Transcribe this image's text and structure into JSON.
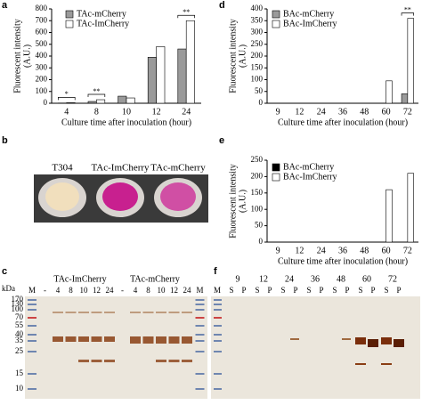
{
  "chart_data": [
    {
      "type": "bar",
      "letter": "a",
      "ylabel": "Fluorescent intensity",
      "ylabel_unit": "(A.U.)",
      "xlabel": "Culture time after inoculation (hour)",
      "categories": [
        "4",
        "8",
        "10",
        "12",
        "24"
      ],
      "series": [
        {
          "name": "TAc-mCherry",
          "color": "#9a9a9a",
          "values": [
            2,
            15,
            60,
            390,
            460
          ]
        },
        {
          "name": "TAc-ImCherry",
          "color": "#ffffff",
          "values": [
            5,
            30,
            45,
            480,
            700
          ]
        }
      ],
      "ylim": [
        0,
        800
      ],
      "yticks": [
        0,
        100,
        200,
        300,
        400,
        500,
        600,
        700,
        800
      ],
      "annotations": [
        "*",
        "**",
        "**"
      ]
    },
    {
      "type": "bar",
      "letter": "d",
      "ylabel": "Fluorescent intensity",
      "ylabel_unit": "(A.U.)",
      "xlabel": "Culture time after inoculation (hour)",
      "categories": [
        "9",
        "12",
        "24",
        "36",
        "48",
        "60",
        "72"
      ],
      "series": [
        {
          "name": "BAc-mCherry",
          "color": "#9a9a9a",
          "values": [
            0,
            0,
            0,
            0,
            0,
            0,
            40
          ]
        },
        {
          "name": "BAc-ImCherry",
          "color": "#ffffff",
          "values": [
            0,
            0,
            0,
            0,
            0,
            95,
            360
          ]
        }
      ],
      "ylim": [
        0,
        400
      ],
      "yticks": [
        0,
        50,
        100,
        150,
        200,
        250,
        300,
        350,
        400
      ],
      "annotations": [
        "**"
      ]
    },
    {
      "type": "bar",
      "letter": "e",
      "ylabel": "Fluorescent intensity",
      "ylabel_unit": "(A.U.)",
      "xlabel": "Culture time after inoculation (hour)",
      "categories": [
        "9",
        "12",
        "24",
        "36",
        "48",
        "60",
        "72"
      ],
      "series": [
        {
          "name": "BAc-mCherry",
          "color": "#000000",
          "values": [
            0,
            0,
            0,
            0,
            0,
            0,
            0
          ]
        },
        {
          "name": "BAc-ImCherry",
          "color": "#ffffff",
          "values": [
            0,
            0,
            0,
            0,
            0,
            160,
            210
          ]
        }
      ],
      "ylim": [
        0,
        250
      ],
      "yticks": [
        0,
        50,
        100,
        150,
        200,
        250
      ],
      "annotations": []
    }
  ],
  "photo_panel": {
    "letter": "b",
    "labels": [
      "T304",
      "TAc-ImCherry",
      "TAc-mCherry"
    ]
  },
  "gel_c": {
    "letter": "c",
    "unit": "kDa",
    "groups": [
      "TAc-ImCherry",
      "TAc-mCherry"
    ],
    "lanes": [
      "M",
      "-",
      "4",
      "8",
      "10",
      "12",
      "24",
      "-",
      "4",
      "8",
      "10",
      "12",
      "24",
      "M"
    ],
    "markers": [
      "170",
      "130",
      "100",
      "70",
      "55",
      "40",
      "35",
      "25",
      "15",
      "10"
    ]
  },
  "gel_f": {
    "letter": "f",
    "marker": "M",
    "times": [
      "9",
      "12",
      "24",
      "36",
      "48",
      "60",
      "72"
    ],
    "fractions": [
      "S",
      "P"
    ]
  }
}
